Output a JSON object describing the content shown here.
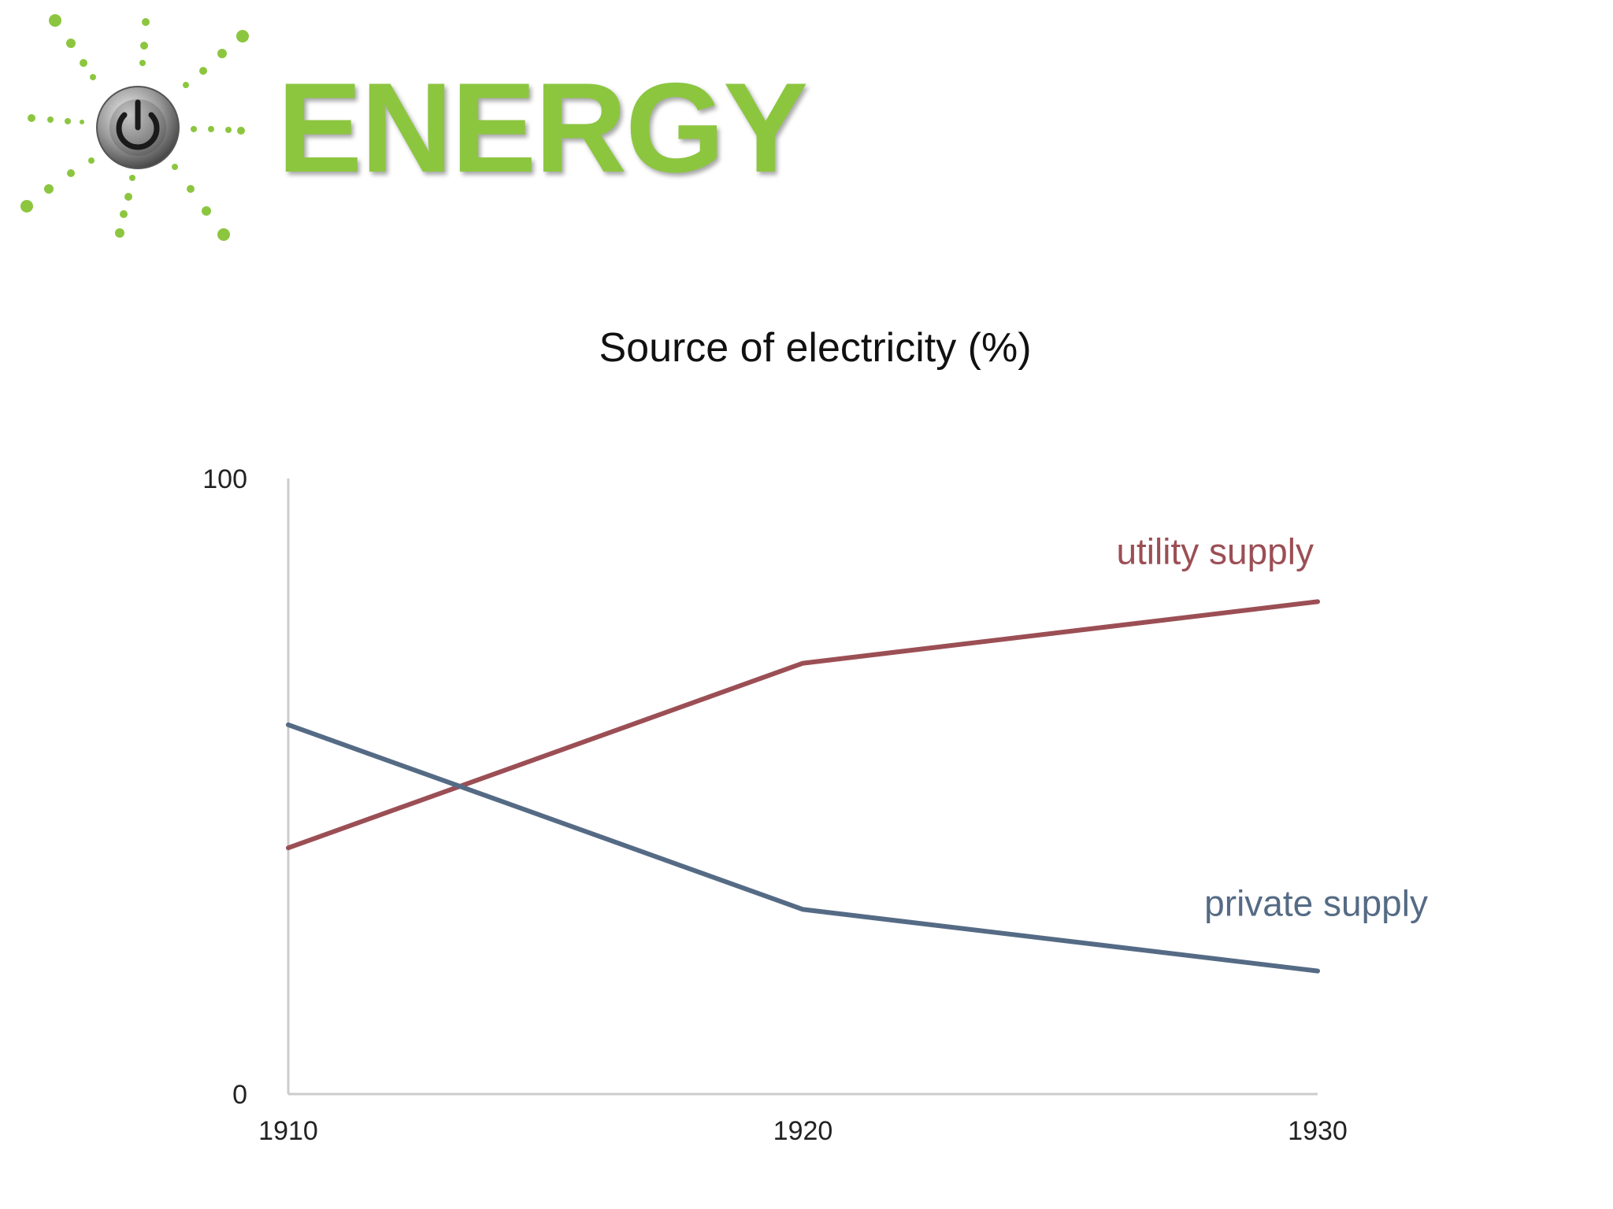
{
  "brand": {
    "title": "ENERGY",
    "icon": "power-button-icon",
    "accent_color": "#8cc63f"
  },
  "chart_data": {
    "type": "line",
    "title": "Source of electricity (%)",
    "xlabel": "",
    "ylabel": "",
    "x": [
      1910,
      1920,
      1930
    ],
    "x_tick_labels": [
      "1910",
      "1920",
      "1930"
    ],
    "y_tick_labels": [
      "0",
      "100"
    ],
    "xlim": [
      1910,
      1930
    ],
    "ylim": [
      0,
      100
    ],
    "grid": false,
    "legend": "inline labels at line ends",
    "series": [
      {
        "name": "utility supply",
        "values": [
          40,
          70,
          80
        ],
        "color": "#9b4f55"
      },
      {
        "name": "private supply",
        "values": [
          60,
          30,
          20
        ],
        "color": "#556b85"
      }
    ]
  }
}
